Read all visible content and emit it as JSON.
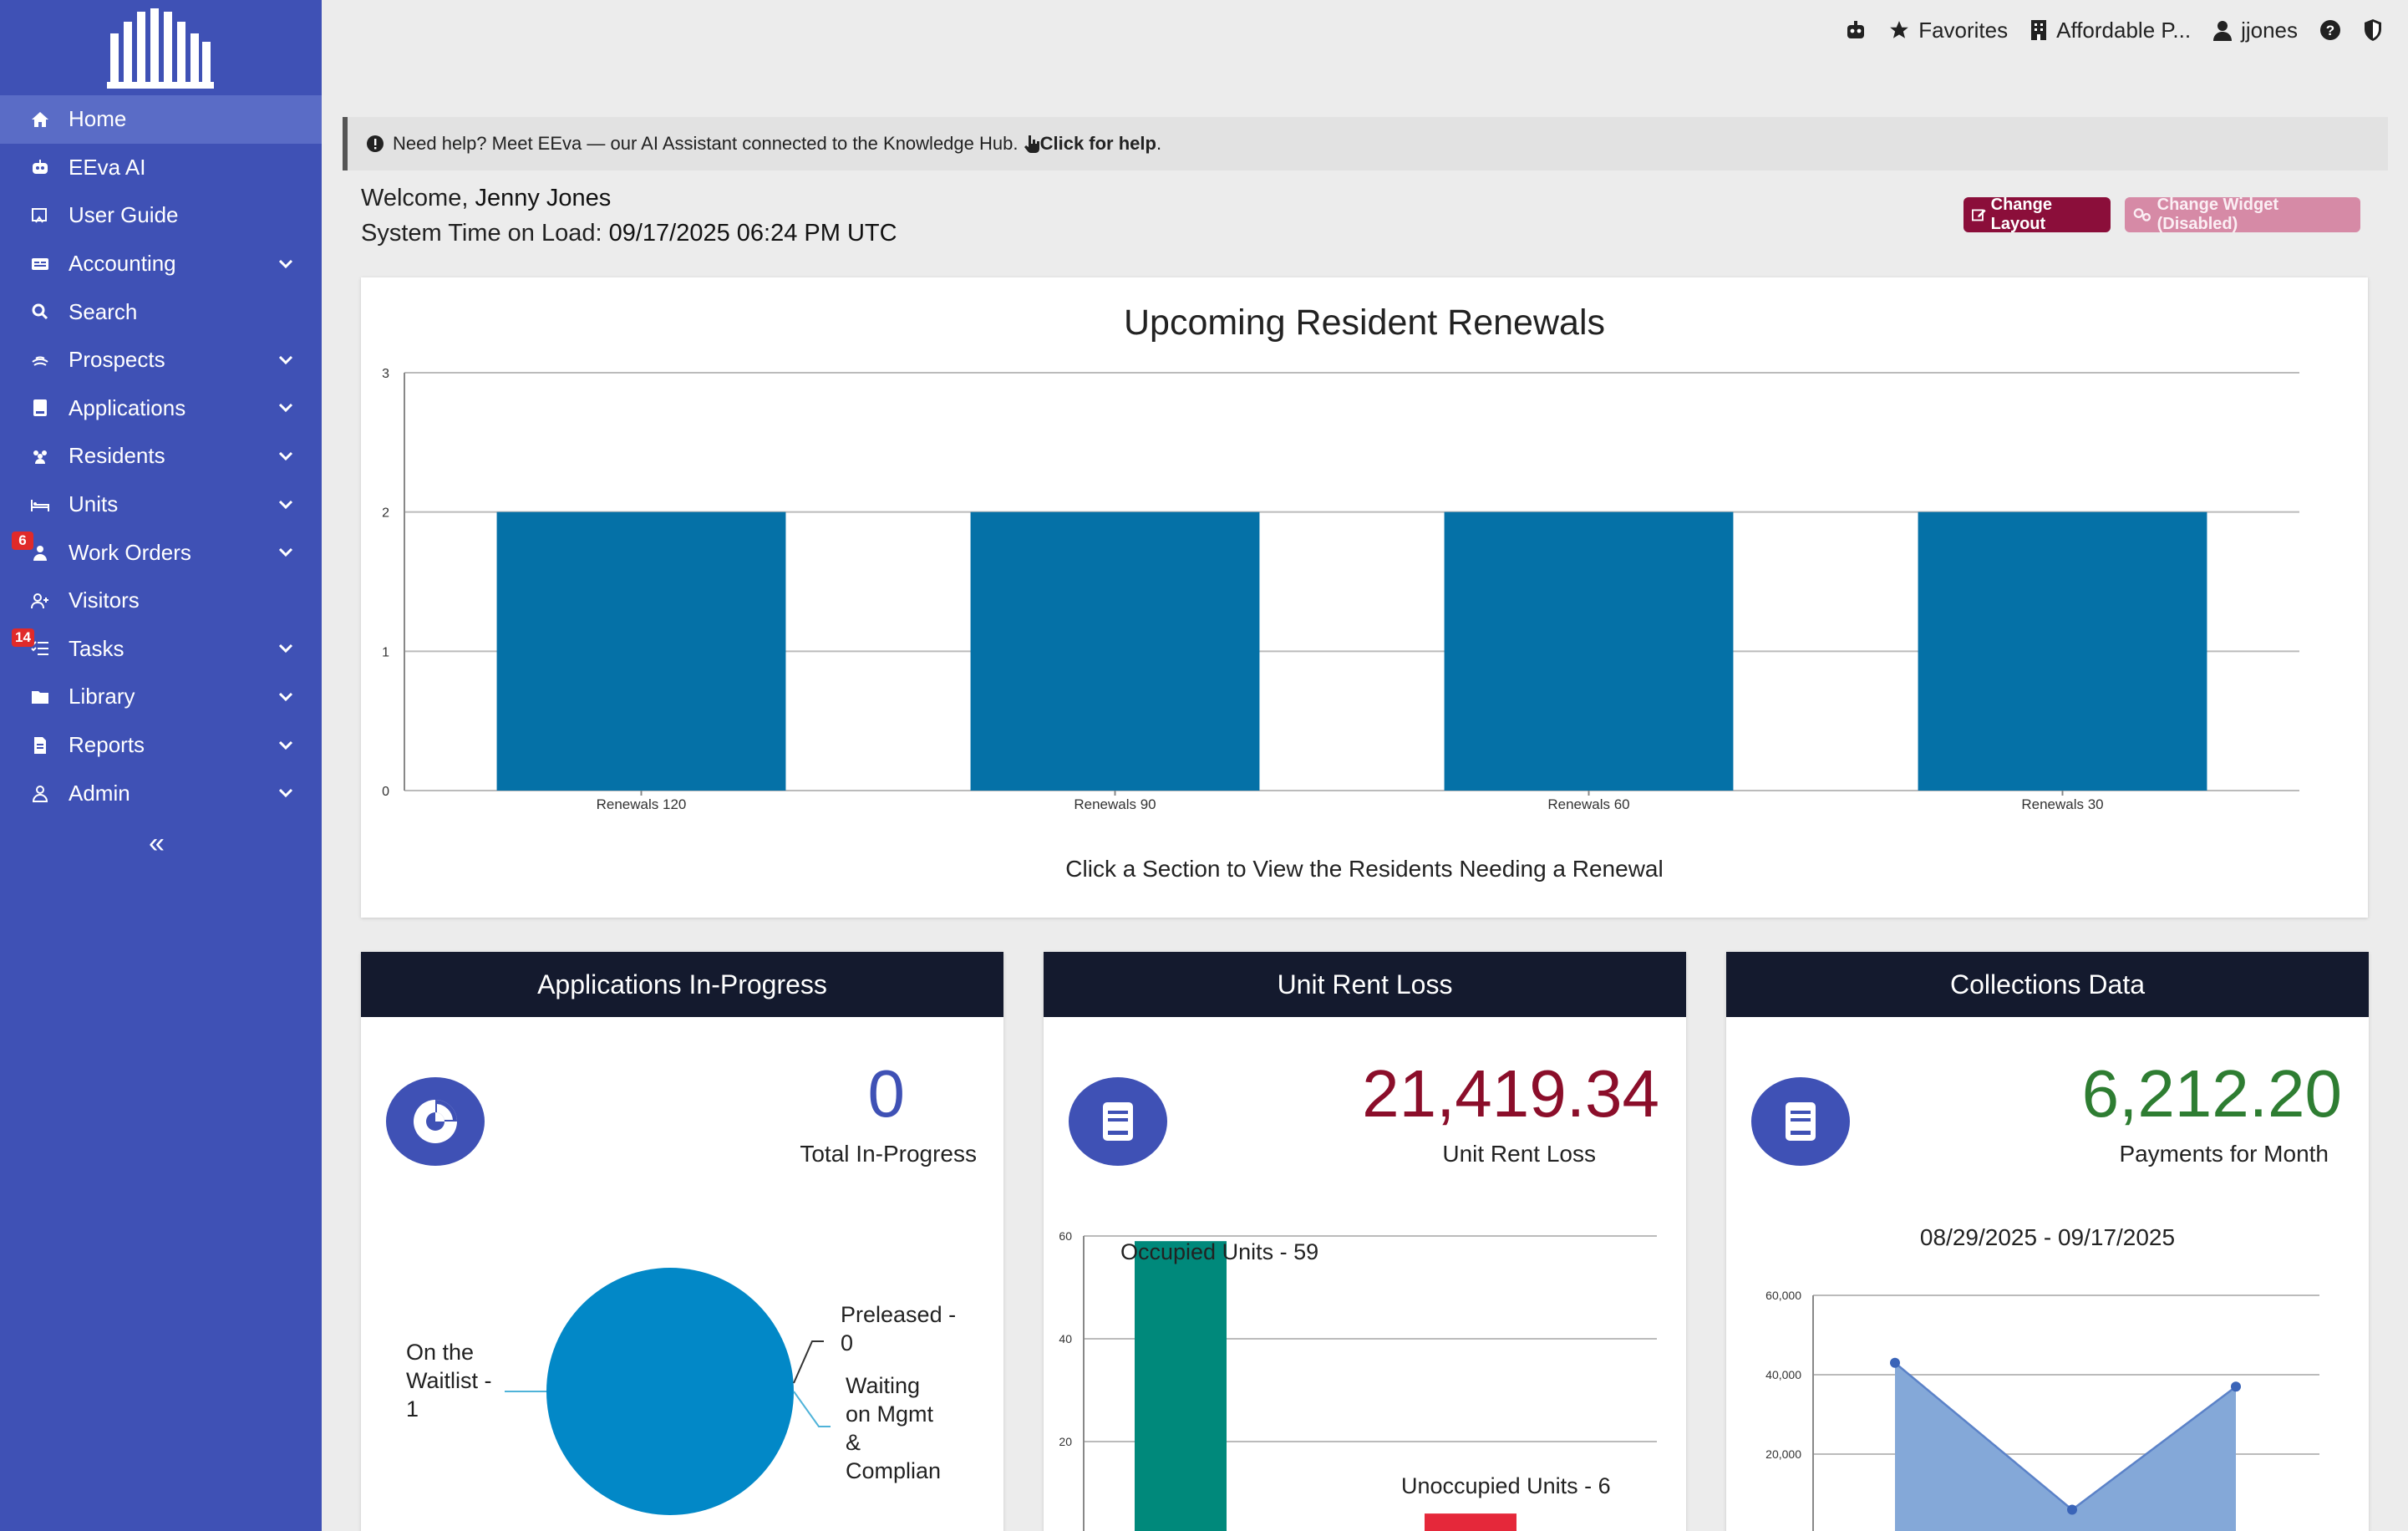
{
  "sidebar": {
    "items": [
      {
        "label": "Home",
        "icon": "home-icon",
        "active": true
      },
      {
        "label": "EEva AI",
        "icon": "robot-icon"
      },
      {
        "label": "User Guide",
        "icon": "guide-icon"
      },
      {
        "label": "Accounting",
        "icon": "accounting-icon",
        "expandable": true
      },
      {
        "label": "Search",
        "icon": "search-icon"
      },
      {
        "label": "Prospects",
        "icon": "prospects-icon",
        "expandable": true
      },
      {
        "label": "Applications",
        "icon": "applications-icon",
        "expandable": true
      },
      {
        "label": "Residents",
        "icon": "residents-icon",
        "expandable": true
      },
      {
        "label": "Units",
        "icon": "bed-icon",
        "expandable": true
      },
      {
        "label": "Work Orders",
        "icon": "worker-icon",
        "expandable": true,
        "badge": "6"
      },
      {
        "label": "Visitors",
        "icon": "visitor-icon"
      },
      {
        "label": "Tasks",
        "icon": "tasks-icon",
        "expandable": true,
        "badge": "14"
      },
      {
        "label": "Library",
        "icon": "folder-icon",
        "expandable": true
      },
      {
        "label": "Reports",
        "icon": "reports-icon",
        "expandable": true
      },
      {
        "label": "Admin",
        "icon": "admin-icon",
        "expandable": true
      }
    ],
    "collapse": "«"
  },
  "topbar": {
    "favorites": "Favorites",
    "property": "Affordable P...",
    "user": "jjones"
  },
  "help": {
    "text": "Need help? Meet EEva — our AI Assistant connected to the Knowledge Hub.",
    "link": "Click for help",
    "period": "."
  },
  "welcome": {
    "prefix": "Welcome,",
    "name": "Jenny Jones",
    "time_label": "System Time on Load:",
    "time_value": "09/17/2025 06:24 PM UTC"
  },
  "buttons": {
    "change_layout": "Change Layout",
    "change_widget": "Change Widget (Disabled)"
  },
  "colors": {
    "sidebar": "#3f51b5",
    "bar": "#0571a7",
    "accent_red": "#8b0e2a",
    "accent_green": "#2e7d32",
    "header_dark": "#141a2e"
  },
  "renewals": {
    "title": "Upcoming Resident Renewals",
    "caption": "Click a Section to View the Residents Needing a Renewal"
  },
  "chart_data": [
    {
      "type": "bar",
      "title": "Upcoming Resident Renewals",
      "categories": [
        "Renewals 120",
        "Renewals 90",
        "Renewals 60",
        "Renewals 30"
      ],
      "values": [
        2,
        2,
        2,
        2
      ],
      "ylim": [
        0,
        3
      ],
      "yticks": [
        "0",
        "1",
        "2",
        "3"
      ],
      "grid": true
    },
    {
      "type": "pie",
      "title": "Applications In-Progress",
      "labels": [
        "On the Waitlist - 1",
        "Preleased - 0",
        "Waiting on Mgmt & Complian"
      ],
      "values": [
        1,
        0,
        0
      ]
    },
    {
      "type": "bar",
      "title": "Unit Rent Loss",
      "categories": [
        "Occupied Units - 59",
        "Unoccupied Units - 6"
      ],
      "values": [
        59,
        6
      ],
      "colors": [
        "#00897b",
        "#e5283a"
      ],
      "ylim": [
        0,
        60
      ],
      "yticks": [
        "20",
        "40",
        "60"
      ]
    },
    {
      "type": "area",
      "title": "Collections Data",
      "values": [
        43000,
        6000,
        37000
      ],
      "ylim": [
        0,
        60000
      ],
      "yticks": [
        "20,000",
        "40,000",
        "60,000"
      ]
    }
  ],
  "widgets": {
    "applications": {
      "title": "Applications In-Progress",
      "value": "0",
      "sub": "Total In-Progress"
    },
    "rentloss": {
      "title": "Unit Rent Loss",
      "value": "21,419.34",
      "sub": "Unit Rent Loss"
    },
    "collections": {
      "title": "Collections Data",
      "value": "6,212.20",
      "sub": "Payments for Month",
      "range": "08/29/2025 - 09/17/2025"
    }
  }
}
